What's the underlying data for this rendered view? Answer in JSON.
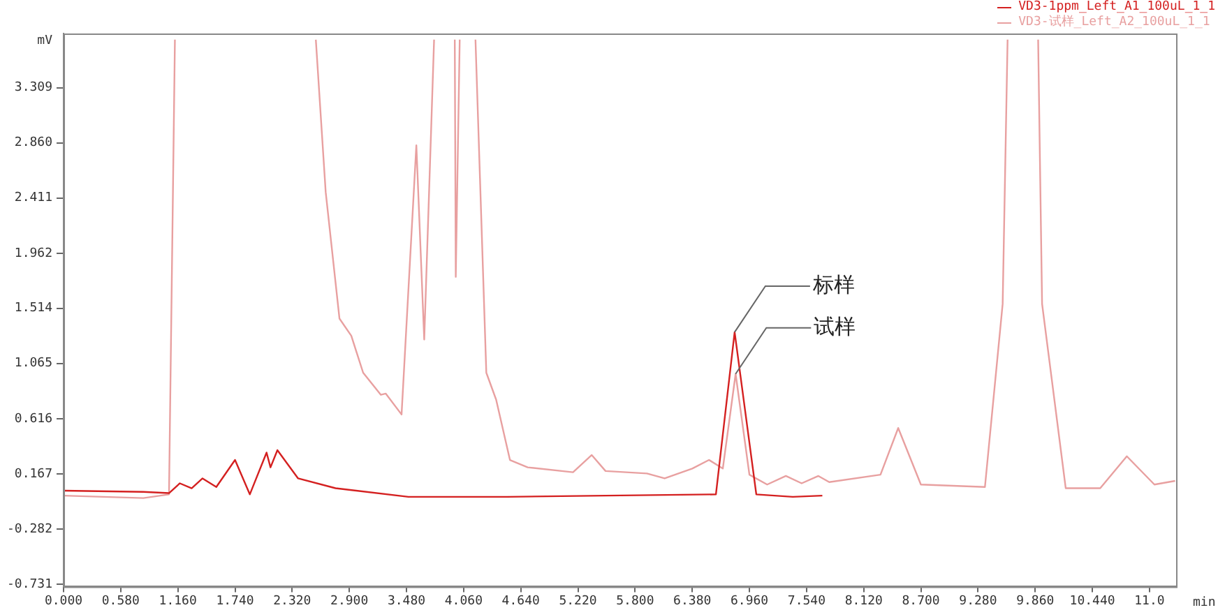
{
  "chart_data": {
    "type": "line",
    "ylabel": "mV",
    "xlabel": "min",
    "xlim": [
      0,
      11.29
    ],
    "ylim": [
      -0.75,
      3.75
    ],
    "xticks": [
      {
        "value": 0,
        "label": "0.000"
      },
      {
        "value": 0.58,
        "label": "0.580"
      },
      {
        "value": 1.16,
        "label": "1.160"
      },
      {
        "value": 1.74,
        "label": "1.740"
      },
      {
        "value": 2.32,
        "label": "2.320"
      },
      {
        "value": 2.9,
        "label": "2.900"
      },
      {
        "value": 3.48,
        "label": "3.480"
      },
      {
        "value": 4.06,
        "label": "4.060"
      },
      {
        "value": 4.64,
        "label": "4.640"
      },
      {
        "value": 5.22,
        "label": "5.220"
      },
      {
        "value": 5.8,
        "label": "5.800"
      },
      {
        "value": 6.38,
        "label": "6.380"
      },
      {
        "value": 6.96,
        "label": "6.960"
      },
      {
        "value": 7.54,
        "label": "7.540"
      },
      {
        "value": 8.12,
        "label": "8.120"
      },
      {
        "value": 8.7,
        "label": "8.700"
      },
      {
        "value": 9.28,
        "label": "9.280"
      },
      {
        "value": 9.86,
        "label": "9.860"
      },
      {
        "value": 10.44,
        "label": "10.440"
      },
      {
        "value": 11.02,
        "label": "11.0"
      }
    ],
    "yticks": [
      -0.731,
      -0.282,
      0.167,
      {
        "value": 0.616,
        "label": "0.616"
      },
      {
        "value": 1.065,
        "label": "1.065"
      },
      1.514,
      1.962,
      2.411,
      {
        "value": 2.86,
        "label": "2.860"
      },
      3.309
    ],
    "grid": false,
    "legend": "top right",
    "marker": "none",
    "line_style": "solid",
    "series": [
      {
        "name": "VD3-1ppm_Left_A1_100uL_1_1",
        "color": "#d42020",
        "x": [
          0,
          0.81,
          1.07,
          1.18,
          1.3,
          1.41,
          1.55,
          1.74,
          1.89,
          2.06,
          2.1,
          2.17,
          2.38,
          2.76,
          3.5,
          4.5,
          5.5,
          6.62,
          6.81,
          7.03,
          7.4,
          7.7
        ],
        "values": [
          0.03,
          0.02,
          0.01,
          0.09,
          0.05,
          0.13,
          0.06,
          0.28,
          0.0,
          0.34,
          0.22,
          0.36,
          0.13,
          0.05,
          -0.02,
          -0.02,
          -0.01,
          0.0,
          1.32,
          0.0,
          -0.02,
          -0.01
        ]
      },
      {
        "name": "VD3-试样_Left_A2_100uL_1_1",
        "color": "#e8a0a0",
        "x": [
          0,
          0.81,
          1.07,
          1.13,
          1.8,
          2.56,
          2.66,
          2.8,
          2.92,
          3.04,
          3.22,
          3.27,
          3.43,
          3.58,
          3.66,
          3.76,
          3.86,
          3.97,
          3.98,
          4.02,
          4.1,
          4.18,
          4.29,
          4.39,
          4.53,
          4.71,
          5.17,
          5.36,
          5.5,
          5.92,
          6.1,
          6.38,
          6.55,
          6.69,
          6.82,
          6.96,
          7.14,
          7.33,
          7.49,
          7.66,
          7.77,
          8.29,
          8.47,
          8.7,
          9.35,
          9.53,
          9.58,
          9.73,
          9.89,
          9.93,
          10.17,
          10.52,
          10.79,
          11.07,
          11.28
        ],
        "values": [
          -0.01,
          -0.03,
          0.0,
          3.7,
          null,
          3.7,
          2.46,
          1.43,
          1.29,
          0.99,
          0.81,
          0.82,
          0.65,
          2.84,
          1.26,
          3.7,
          null,
          3.7,
          1.77,
          3.7,
          null,
          3.7,
          0.99,
          0.77,
          0.28,
          0.22,
          0.18,
          0.32,
          0.19,
          0.17,
          0.13,
          0.21,
          0.28,
          0.21,
          0.98,
          0.16,
          0.08,
          0.15,
          0.09,
          0.15,
          0.1,
          0.16,
          0.54,
          0.08,
          0.06,
          1.55,
          3.7,
          null,
          3.7,
          1.55,
          0.05,
          0.05,
          0.31,
          0.08,
          0.11
        ]
      }
    ],
    "annotations": [
      {
        "text": "标样",
        "x": 6.81,
        "y": 1.32
      },
      {
        "text": "试样",
        "x": 6.82,
        "y": 0.98
      }
    ]
  }
}
